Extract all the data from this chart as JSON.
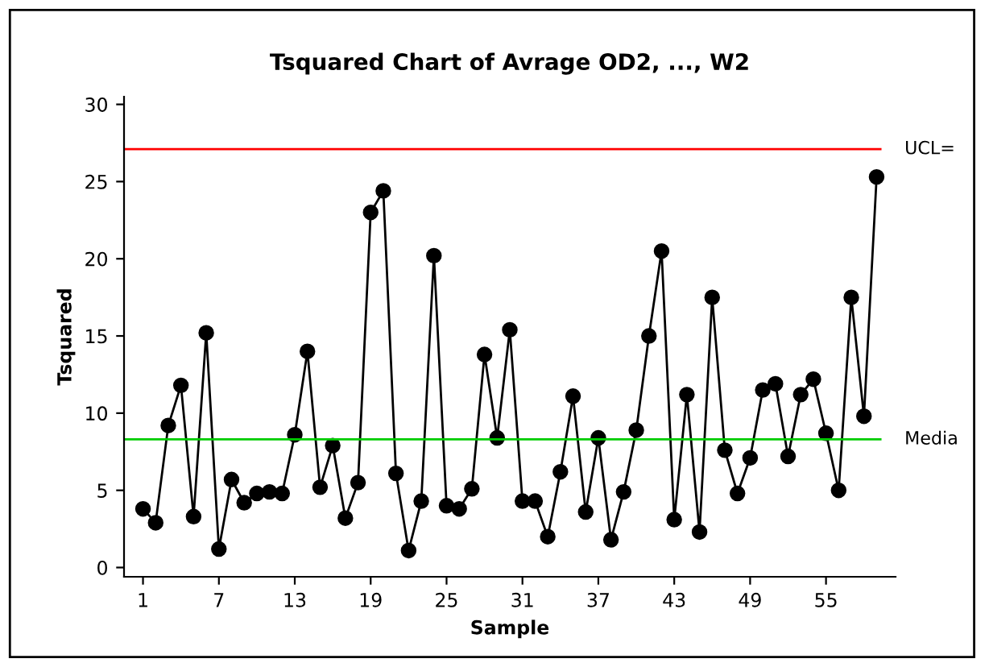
{
  "chart_data": {
    "type": "line",
    "title": "Tsquared Chart of Avrage OD2, ..., W2",
    "xlabel": "Sample",
    "ylabel": "Tsquared",
    "x": [
      1,
      2,
      3,
      4,
      5,
      6,
      7,
      8,
      9,
      10,
      11,
      12,
      13,
      14,
      15,
      16,
      17,
      18,
      19,
      20,
      21,
      22,
      23,
      24,
      25,
      26,
      27,
      28,
      29,
      30,
      31,
      32,
      33,
      34,
      35,
      36,
      37,
      38,
      39,
      40,
      41,
      42,
      43,
      44,
      45,
      46,
      47,
      48,
      49,
      50,
      51,
      52,
      53,
      54,
      55,
      56,
      57,
      58,
      59
    ],
    "series": [
      {
        "color": "#000000",
        "values": [
          3.8,
          2.9,
          9.2,
          11.8,
          3.3,
          15.2,
          1.2,
          5.7,
          4.2,
          4.8,
          4.9,
          4.8,
          8.6,
          14.0,
          5.2,
          7.9,
          3.2,
          5.5,
          23.0,
          24.4,
          6.1,
          1.1,
          4.3,
          20.2,
          4.0,
          3.8,
          5.1,
          13.8,
          8.4,
          15.4,
          4.3,
          4.3,
          2.0,
          6.2,
          11.1,
          3.6,
          8.4,
          1.8,
          4.9,
          8.9,
          15.0,
          20.5,
          3.1,
          11.2,
          2.3,
          17.5,
          7.6,
          4.8,
          7.1,
          11.5,
          11.9,
          7.2,
          11.2,
          12.2,
          8.7,
          5.0,
          17.5,
          9.8,
          25.3
        ]
      }
    ],
    "marker": "circle",
    "line_style": "solid",
    "grid": false,
    "legend": false,
    "xlim": [
      -0.5,
      60.5
    ],
    "xticks": [
      1,
      7,
      13,
      19,
      25,
      31,
      37,
      43,
      49,
      55
    ],
    "ylim": [
      -0.6,
      30.5
    ],
    "yticks": [
      0,
      5,
      10,
      15,
      20,
      25,
      30
    ],
    "ref_lines": [
      {
        "axis": "y",
        "value": 27.1,
        "label": "UCL=",
        "color": "#ff0000"
      },
      {
        "axis": "y",
        "value": 8.3,
        "label": "Media",
        "color": "#00cc00"
      }
    ]
  }
}
